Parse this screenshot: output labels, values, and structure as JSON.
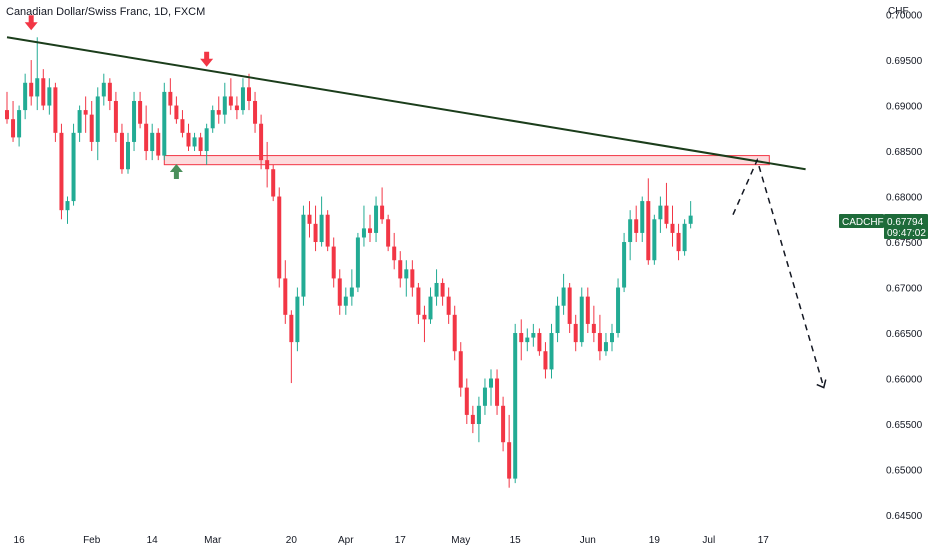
{
  "chart_data": {
    "type": "candlestick",
    "title": "Canadian Dollar/Swiss Franc, 1D, FXCM",
    "currency": "CHF",
    "symbol": "CADCHF",
    "last_price": "0.67794",
    "countdown": "09:47:02",
    "ylim": [
      0.645,
      0.7005
    ],
    "y_ticks": [
      "0.70000",
      "0.69500",
      "0.69000",
      "0.68500",
      "0.68000",
      "0.67500",
      "0.67000",
      "0.66500",
      "0.66000",
      "0.65500",
      "0.65000",
      "0.64500"
    ],
    "x_ticks": [
      {
        "label": "16",
        "bar": 2
      },
      {
        "label": "Feb",
        "bar": 14
      },
      {
        "label": "14",
        "bar": 24
      },
      {
        "label": "Mar",
        "bar": 34
      },
      {
        "label": "20",
        "bar": 47
      },
      {
        "label": "Apr",
        "bar": 56
      },
      {
        "label": "17",
        "bar": 65
      },
      {
        "label": "May",
        "bar": 75
      },
      {
        "label": "15",
        "bar": 84
      },
      {
        "label": "Jun",
        "bar": 96
      },
      {
        "label": "19",
        "bar": 107
      },
      {
        "label": "Jul",
        "bar": 116
      },
      {
        "label": "17",
        "bar": 125
      }
    ],
    "candles": [
      [
        0.6895,
        0.6915,
        0.688,
        0.6885
      ],
      [
        0.6885,
        0.6905,
        0.686,
        0.6865
      ],
      [
        0.6865,
        0.69,
        0.6855,
        0.6895
      ],
      [
        0.6895,
        0.6935,
        0.6885,
        0.6925
      ],
      [
        0.6925,
        0.695,
        0.69,
        0.691
      ],
      [
        0.691,
        0.6975,
        0.6895,
        0.693
      ],
      [
        0.693,
        0.694,
        0.6895,
        0.69
      ],
      [
        0.69,
        0.693,
        0.689,
        0.692
      ],
      [
        0.692,
        0.6925,
        0.686,
        0.687
      ],
      [
        0.687,
        0.688,
        0.6775,
        0.6785
      ],
      [
        0.6785,
        0.68,
        0.677,
        0.6795
      ],
      [
        0.6795,
        0.688,
        0.679,
        0.687
      ],
      [
        0.687,
        0.69,
        0.686,
        0.6895
      ],
      [
        0.6895,
        0.691,
        0.687,
        0.689
      ],
      [
        0.689,
        0.6905,
        0.685,
        0.686
      ],
      [
        0.686,
        0.692,
        0.684,
        0.691
      ],
      [
        0.691,
        0.6935,
        0.69,
        0.6925
      ],
      [
        0.6925,
        0.693,
        0.6895,
        0.6905
      ],
      [
        0.6905,
        0.6915,
        0.686,
        0.687
      ],
      [
        0.687,
        0.688,
        0.6825,
        0.683
      ],
      [
        0.683,
        0.687,
        0.6825,
        0.686
      ],
      [
        0.686,
        0.6915,
        0.685,
        0.6905
      ],
      [
        0.6905,
        0.6915,
        0.6875,
        0.688
      ],
      [
        0.688,
        0.69,
        0.684,
        0.685
      ],
      [
        0.685,
        0.688,
        0.684,
        0.687
      ],
      [
        0.687,
        0.6875,
        0.684,
        0.6845
      ],
      [
        0.6845,
        0.6925,
        0.684,
        0.6915
      ],
      [
        0.6915,
        0.693,
        0.689,
        0.69
      ],
      [
        0.69,
        0.691,
        0.688,
        0.6885
      ],
      [
        0.6885,
        0.6895,
        0.6865,
        0.687
      ],
      [
        0.687,
        0.688,
        0.685,
        0.6855
      ],
      [
        0.6855,
        0.687,
        0.685,
        0.6865
      ],
      [
        0.6865,
        0.687,
        0.6845,
        0.685
      ],
      [
        0.685,
        0.688,
        0.6835,
        0.6875
      ],
      [
        0.6875,
        0.69,
        0.687,
        0.6895
      ],
      [
        0.6895,
        0.691,
        0.688,
        0.689
      ],
      [
        0.689,
        0.6925,
        0.688,
        0.691
      ],
      [
        0.691,
        0.693,
        0.6895,
        0.69
      ],
      [
        0.69,
        0.691,
        0.6885,
        0.6895
      ],
      [
        0.6895,
        0.693,
        0.689,
        0.692
      ],
      [
        0.692,
        0.6935,
        0.6895,
        0.6905
      ],
      [
        0.6905,
        0.6915,
        0.687,
        0.688
      ],
      [
        0.688,
        0.689,
        0.683,
        0.684
      ],
      [
        0.684,
        0.686,
        0.681,
        0.683
      ],
      [
        0.683,
        0.6835,
        0.6795,
        0.68
      ],
      [
        0.68,
        0.681,
        0.67,
        0.671
      ],
      [
        0.671,
        0.673,
        0.666,
        0.667
      ],
      [
        0.667,
        0.6675,
        0.6595,
        0.664
      ],
      [
        0.664,
        0.67,
        0.663,
        0.669
      ],
      [
        0.669,
        0.679,
        0.668,
        0.678
      ],
      [
        0.678,
        0.6795,
        0.6755,
        0.677
      ],
      [
        0.677,
        0.679,
        0.674,
        0.675
      ],
      [
        0.675,
        0.68,
        0.6745,
        0.678
      ],
      [
        0.678,
        0.6785,
        0.674,
        0.6745
      ],
      [
        0.6745,
        0.6755,
        0.67,
        0.671
      ],
      [
        0.671,
        0.672,
        0.667,
        0.668
      ],
      [
        0.668,
        0.67,
        0.667,
        0.669
      ],
      [
        0.669,
        0.672,
        0.668,
        0.67
      ],
      [
        0.67,
        0.676,
        0.6695,
        0.6755
      ],
      [
        0.6755,
        0.679,
        0.6745,
        0.6765
      ],
      [
        0.6765,
        0.678,
        0.675,
        0.676
      ],
      [
        0.676,
        0.68,
        0.675,
        0.679
      ],
      [
        0.679,
        0.681,
        0.677,
        0.6775
      ],
      [
        0.6775,
        0.678,
        0.674,
        0.6745
      ],
      [
        0.6745,
        0.676,
        0.672,
        0.673
      ],
      [
        0.673,
        0.674,
        0.67,
        0.671
      ],
      [
        0.671,
        0.673,
        0.669,
        0.672
      ],
      [
        0.672,
        0.673,
        0.669,
        0.67
      ],
      [
        0.67,
        0.6705,
        0.666,
        0.667
      ],
      [
        0.667,
        0.668,
        0.664,
        0.6665
      ],
      [
        0.6665,
        0.67,
        0.666,
        0.669
      ],
      [
        0.669,
        0.672,
        0.668,
        0.6705
      ],
      [
        0.6705,
        0.671,
        0.668,
        0.669
      ],
      [
        0.669,
        0.67,
        0.666,
        0.667
      ],
      [
        0.667,
        0.668,
        0.662,
        0.663
      ],
      [
        0.663,
        0.664,
        0.658,
        0.659
      ],
      [
        0.659,
        0.66,
        0.655,
        0.656
      ],
      [
        0.656,
        0.657,
        0.654,
        0.655
      ],
      [
        0.655,
        0.658,
        0.653,
        0.657
      ],
      [
        0.657,
        0.66,
        0.656,
        0.659
      ],
      [
        0.659,
        0.661,
        0.657,
        0.66
      ],
      [
        0.66,
        0.661,
        0.656,
        0.657
      ],
      [
        0.657,
        0.658,
        0.652,
        0.653
      ],
      [
        0.653,
        0.656,
        0.648,
        0.649
      ],
      [
        0.649,
        0.666,
        0.6485,
        0.665
      ],
      [
        0.665,
        0.6665,
        0.662,
        0.664
      ],
      [
        0.664,
        0.6655,
        0.663,
        0.6645
      ],
      [
        0.6645,
        0.666,
        0.6635,
        0.665
      ],
      [
        0.665,
        0.6655,
        0.6625,
        0.663
      ],
      [
        0.663,
        0.664,
        0.66,
        0.661
      ],
      [
        0.661,
        0.666,
        0.66,
        0.665
      ],
      [
        0.665,
        0.669,
        0.664,
        0.668
      ],
      [
        0.668,
        0.6715,
        0.667,
        0.67
      ],
      [
        0.67,
        0.6705,
        0.665,
        0.666
      ],
      [
        0.666,
        0.667,
        0.663,
        0.664
      ],
      [
        0.664,
        0.67,
        0.6635,
        0.669
      ],
      [
        0.669,
        0.67,
        0.665,
        0.666
      ],
      [
        0.666,
        0.668,
        0.664,
        0.665
      ],
      [
        0.665,
        0.667,
        0.662,
        0.663
      ],
      [
        0.663,
        0.665,
        0.6625,
        0.664
      ],
      [
        0.664,
        0.666,
        0.663,
        0.665
      ],
      [
        0.665,
        0.671,
        0.6645,
        0.67
      ],
      [
        0.67,
        0.676,
        0.6695,
        0.675
      ],
      [
        0.675,
        0.6785,
        0.673,
        0.6775
      ],
      [
        0.6775,
        0.679,
        0.675,
        0.676
      ],
      [
        0.676,
        0.68,
        0.675,
        0.6795
      ],
      [
        0.6795,
        0.682,
        0.6725,
        0.673
      ],
      [
        0.673,
        0.678,
        0.6725,
        0.6775
      ],
      [
        0.6775,
        0.68,
        0.676,
        0.679
      ],
      [
        0.679,
        0.6815,
        0.6765,
        0.677
      ],
      [
        0.677,
        0.679,
        0.6745,
        0.676
      ],
      [
        0.676,
        0.677,
        0.673,
        0.674
      ],
      [
        0.674,
        0.6775,
        0.6735,
        0.677
      ],
      [
        0.677,
        0.6795,
        0.6765,
        0.6779
      ]
    ],
    "trendline": {
      "start_bar": 0,
      "start_price": 0.6975,
      "end_bar": 132,
      "end_price": 0.683
    },
    "resistance_zone": {
      "start_bar": 26,
      "end_bar": 126,
      "top": 0.6845,
      "bottom": 0.6835
    },
    "projection": [
      [
        120,
        0.678
      ],
      [
        124,
        0.684
      ],
      [
        135,
        0.659
      ]
    ],
    "markers": [
      {
        "type": "down",
        "bar": 4,
        "price": 0.6975
      },
      {
        "type": "down",
        "bar": 33,
        "price": 0.6935
      },
      {
        "type": "up",
        "bar": 28,
        "price": 0.6838
      }
    ],
    "colors": {
      "up": "#22ab94",
      "down": "#f23645",
      "trend": "#1b3d1b",
      "zone": "#f23645",
      "tag": "#1e6b3a",
      "up_marker": "#4a8f5b",
      "down_marker": "#f23645"
    },
    "grid": false
  }
}
